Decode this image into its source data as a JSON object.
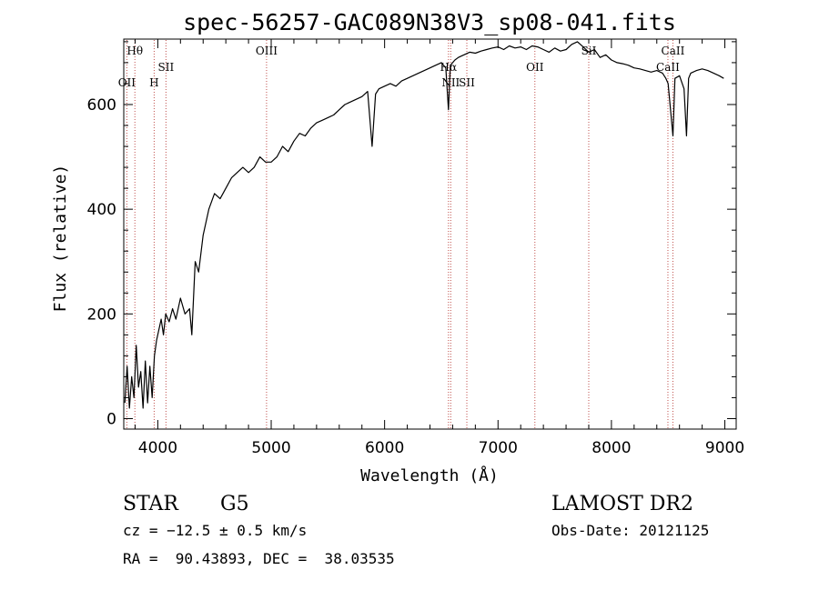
{
  "chart_data": {
    "type": "line",
    "title": "spec-56257-GAC089N38V3_sp08-041.fits",
    "xlabel": "Wavelength (Å)",
    "ylabel": "Flux (relative)",
    "xlim": [
      3700,
      9100
    ],
    "ylim": [
      -20,
      725
    ],
    "x_ticks": [
      4000,
      5000,
      6000,
      7000,
      8000,
      9000
    ],
    "y_ticks": [
      0,
      200,
      400,
      600
    ],
    "x_tick_labels": [
      "4000",
      "5000",
      "6000",
      "7000",
      "8000",
      "9000"
    ],
    "y_tick_labels": [
      "0",
      "200",
      "400",
      "600"
    ],
    "grid": false,
    "line_color": "#000000",
    "marker_color": "#c0504d",
    "series": [
      {
        "x": [
          3710,
          3730,
          3750,
          3770,
          3790,
          3810,
          3830,
          3850,
          3870,
          3890,
          3910,
          3930,
          3950,
          3970,
          3990,
          4010,
          4030,
          4050,
          4070,
          4100,
          4130,
          4160,
          4200,
          4240,
          4280,
          4300,
          4330,
          4360,
          4400,
          4450,
          4500,
          4550,
          4600,
          4650,
          4700,
          4750,
          4800,
          4850,
          4900,
          4950,
          5000,
          5050,
          5100,
          5150,
          5200,
          5250,
          5300,
          5350,
          5400,
          5450,
          5500,
          5550,
          5600,
          5650,
          5700,
          5750,
          5800,
          5850,
          5890,
          5920,
          5950,
          6000,
          6050,
          6100,
          6150,
          6200,
          6250,
          6300,
          6350,
          6400,
          6450,
          6500,
          6540,
          6563,
          6580,
          6620,
          6650,
          6700,
          6750,
          6800,
          6850,
          6900,
          6950,
          7000,
          7050,
          7100,
          7150,
          7200,
          7250,
          7300,
          7350,
          7400,
          7450,
          7500,
          7550,
          7600,
          7650,
          7700,
          7750,
          7800,
          7850,
          7900,
          7950,
          8000,
          8050,
          8100,
          8150,
          8200,
          8250,
          8300,
          8350,
          8400,
          8450,
          8480,
          8500,
          8542,
          8560,
          8600,
          8640,
          8662,
          8680,
          8700,
          8750,
          8800,
          8850,
          8900,
          8950,
          8990
        ],
        "y": [
          30,
          100,
          20,
          80,
          40,
          140,
          60,
          90,
          20,
          110,
          30,
          100,
          40,
          120,
          150,
          170,
          190,
          160,
          200,
          185,
          210,
          190,
          230,
          200,
          210,
          160,
          300,
          280,
          350,
          400,
          430,
          420,
          440,
          460,
          470,
          480,
          470,
          480,
          500,
          490,
          490,
          500,
          520,
          510,
          530,
          545,
          540,
          555,
          565,
          570,
          575,
          580,
          590,
          600,
          605,
          610,
          615,
          625,
          520,
          620,
          630,
          635,
          640,
          635,
          645,
          650,
          655,
          660,
          665,
          670,
          675,
          680,
          670,
          590,
          675,
          685,
          690,
          695,
          700,
          698,
          702,
          705,
          708,
          710,
          705,
          712,
          708,
          710,
          705,
          712,
          710,
          705,
          700,
          708,
          702,
          705,
          715,
          720,
          710,
          700,
          705,
          690,
          695,
          685,
          680,
          678,
          675,
          670,
          668,
          665,
          662,
          665,
          660,
          650,
          640,
          540,
          650,
          655,
          630,
          540,
          650,
          660,
          665,
          668,
          665,
          660,
          655,
          650
        ]
      }
    ],
    "lines": [
      {
        "label": "Hθ",
        "wavelength": 3798,
        "level": 1
      },
      {
        "label": "OII",
        "wavelength": 3727,
        "level": 3
      },
      {
        "label": "H",
        "wavelength": 3968,
        "level": 3
      },
      {
        "label": "SII",
        "wavelength": 4072,
        "level": 2
      },
      {
        "label": "OIII",
        "wavelength": 4959,
        "level": 1
      },
      {
        "label": "Hα",
        "wavelength": 6563,
        "level": 2
      },
      {
        "label": "NII",
        "wavelength": 6583,
        "level": 3
      },
      {
        "label": "SII",
        "wavelength": 6725,
        "level": 3
      },
      {
        "label": "OII",
        "wavelength": 7325,
        "level": 2
      },
      {
        "label": "SiI",
        "wavelength": 7800,
        "level": 1
      },
      {
        "label": "CaII",
        "wavelength": 8542,
        "level": 1
      },
      {
        "label": "CaII",
        "wavelength": 8498,
        "level": 2
      }
    ]
  },
  "info": {
    "class": "STAR",
    "subclass": "G5",
    "survey": "LAMOST DR2",
    "cz": "cz = −12.5 ± 0.5 km/s",
    "obs_date": "Obs-Date: 20121125",
    "radec": "RA =  90.43893, DEC =  38.03535"
  }
}
